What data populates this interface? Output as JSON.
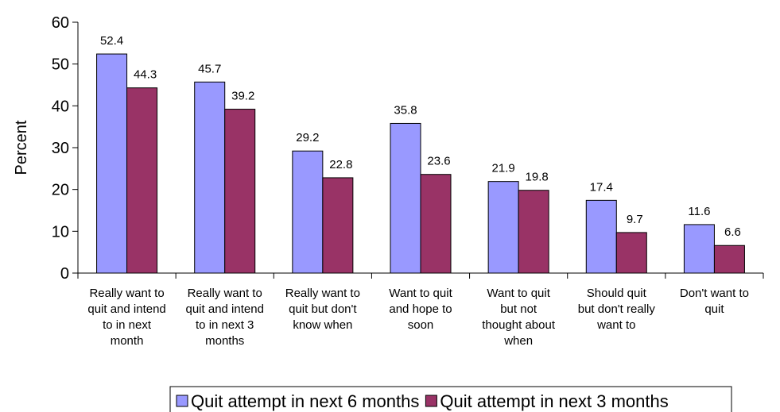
{
  "chart_data": {
    "type": "bar",
    "categories": [
      [
        "Really want to",
        "quit and intend",
        "to in next",
        "month"
      ],
      [
        "Really want to",
        "quit and intend",
        "to in next 3",
        "months"
      ],
      [
        "Really want to",
        "quit but don't",
        "know when"
      ],
      [
        "Want to quit",
        "and hope to",
        "soon"
      ],
      [
        "Want to quit",
        "but not",
        "thought about",
        "when"
      ],
      [
        "Should quit",
        "but don't really",
        "want to"
      ],
      [
        "Don't want to",
        "quit"
      ]
    ],
    "series": [
      {
        "name": "Quit attempt in next 6 months",
        "color": "#9999ff",
        "values": [
          52.4,
          45.7,
          29.2,
          35.8,
          21.9,
          17.4,
          11.6
        ]
      },
      {
        "name": "Quit attempt in next 3 months",
        "color": "#993366",
        "values": [
          44.3,
          39.2,
          22.8,
          23.6,
          19.8,
          9.7,
          6.6
        ]
      }
    ],
    "ylabel": "Percent",
    "xlabel": "",
    "ylim": [
      0,
      60
    ],
    "yticks": [
      0,
      10,
      20,
      30,
      40,
      50,
      60
    ],
    "legend_position": "bottom",
    "grid": false
  }
}
